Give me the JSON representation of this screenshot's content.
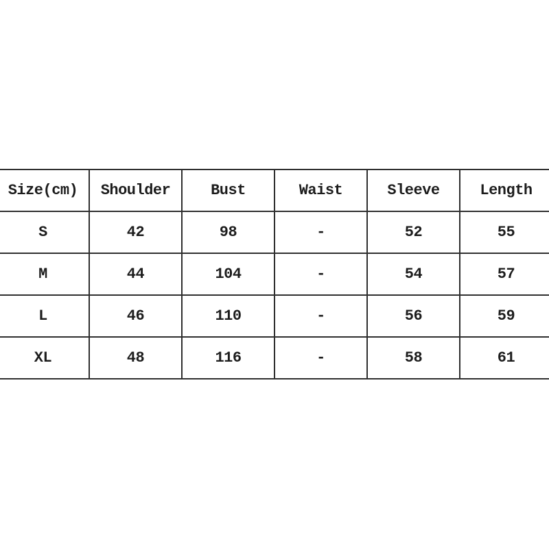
{
  "style": {
    "background": "#ffffff",
    "border_color": "#2f2f2f",
    "text_color": "#1c1c1c"
  },
  "chart_data": {
    "type": "table",
    "columns": [
      "Size(cm)",
      "Shoulder",
      "Bust",
      "Waist",
      "Sleeve",
      "Length"
    ],
    "rows": [
      [
        "S",
        "42",
        "98",
        "-",
        "52",
        "55"
      ],
      [
        "M",
        "44",
        "104",
        "-",
        "54",
        "57"
      ],
      [
        "L",
        "46",
        "110",
        "-",
        "56",
        "59"
      ],
      [
        "XL",
        "48",
        "116",
        "-",
        "58",
        "61"
      ]
    ]
  }
}
